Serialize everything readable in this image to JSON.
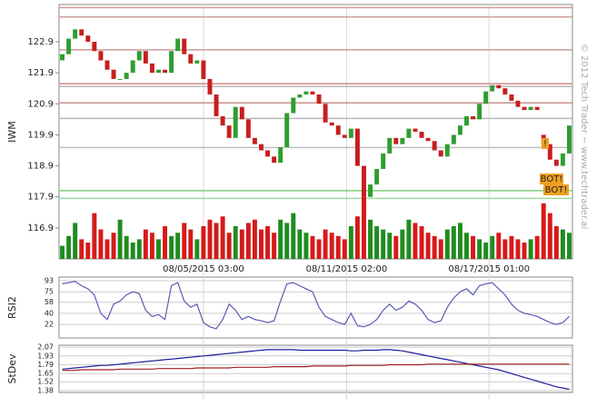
{
  "chart_data": [
    {
      "type": "candlestick",
      "ylabel": "IWM",
      "up_color": "#2e9e2e",
      "down_color": "#c81e1e",
      "xlim": [
        -0.5,
        79.5
      ],
      "xticks": [
        {
          "value": 22,
          "label": "08/05/2015 03:00"
        },
        {
          "value": 44.3,
          "label": "08/11/2015 02:00"
        },
        {
          "value": 66.5,
          "label": "08/17/2015 01:00"
        }
      ],
      "ylim": [
        115.9,
        124.1
      ],
      "yticks": [
        116.9,
        117.9,
        118.9,
        119.9,
        120.9,
        121.9,
        122.9
      ],
      "open": [
        122.3,
        122.5,
        123.0,
        123.3,
        123.1,
        122.9,
        122.6,
        122.3,
        122.0,
        121.7,
        121.7,
        121.9,
        122.3,
        122.6,
        122.2,
        121.9,
        122.0,
        121.9,
        122.6,
        123.0,
        122.5,
        122.2,
        122.3,
        121.7,
        121.2,
        120.5,
        120.2,
        119.8,
        120.8,
        120.4,
        119.8,
        119.6,
        119.4,
        119.2,
        119.0,
        119.5,
        120.6,
        121.1,
        121.2,
        121.3,
        121.2,
        120.9,
        120.3,
        120.2,
        119.9,
        119.8,
        120.1,
        118.9,
        117.9,
        118.3,
        118.8,
        119.3,
        119.8,
        119.6,
        119.8,
        120.1,
        120.0,
        119.8,
        119.7,
        119.4,
        119.2,
        119.6,
        119.9,
        120.2,
        120.5,
        120.4,
        120.9,
        121.3,
        121.5,
        121.4,
        121.2,
        121.0,
        120.8,
        120.7,
        120.8,
        119.9,
        119.6,
        119.1,
        118.9,
        119.3
      ],
      "close": [
        122.5,
        123.0,
        123.3,
        123.1,
        122.9,
        122.6,
        122.3,
        122.0,
        121.7,
        121.7,
        121.9,
        122.3,
        122.6,
        122.2,
        121.9,
        122.0,
        121.9,
        122.6,
        123.0,
        122.5,
        122.2,
        122.3,
        121.7,
        121.2,
        120.5,
        120.2,
        119.8,
        120.8,
        120.4,
        119.8,
        119.6,
        119.4,
        119.2,
        119.0,
        119.5,
        120.6,
        121.1,
        121.2,
        121.3,
        121.2,
        120.9,
        120.3,
        120.2,
        119.9,
        119.8,
        120.1,
        118.9,
        117.9,
        118.3,
        118.8,
        119.3,
        119.8,
        119.6,
        119.8,
        120.1,
        120.0,
        119.8,
        119.7,
        119.4,
        119.2,
        119.6,
        119.9,
        120.2,
        120.5,
        120.4,
        120.9,
        121.3,
        121.5,
        121.4,
        121.2,
        121.0,
        120.8,
        120.7,
        120.8,
        120.7,
        119.6,
        119.1,
        118.9,
        119.3,
        120.2
      ],
      "levels": [
        {
          "value": 124.0,
          "color": "#d09a9a"
        },
        {
          "value": 123.7,
          "color": "#d09a9a"
        },
        {
          "value": 122.64,
          "color": "#d09a9a"
        },
        {
          "value": 121.55,
          "color": "#d48a8a"
        },
        {
          "value": 121.46,
          "color": "#b8b8b8"
        },
        {
          "value": 120.93,
          "color": "#c89090"
        },
        {
          "value": 120.43,
          "color": "#b8b8b8"
        },
        {
          "value": 119.49,
          "color": "#c0c0c0"
        },
        {
          "value": 118.1,
          "color": "#7ccf7c"
        },
        {
          "value": 117.85,
          "color": "#9ed99e"
        }
      ],
      "annotations": [
        "!",
        "BOT!",
        "BOT!"
      ],
      "source": "© 2012 Tech Trader ~ www.techtrader.ai"
    },
    {
      "type": "bar",
      "up_color": "#1f8c1f",
      "down_color": "#d61a1a",
      "ylim": [
        0,
        100
      ],
      "values": [
        20,
        35,
        55,
        30,
        25,
        70,
        45,
        30,
        40,
        60,
        35,
        25,
        30,
        45,
        40,
        30,
        50,
        35,
        40,
        55,
        45,
        30,
        50,
        60,
        55,
        65,
        40,
        50,
        45,
        55,
        60,
        45,
        50,
        40,
        60,
        55,
        70,
        45,
        40,
        35,
        30,
        45,
        40,
        35,
        30,
        50,
        65,
        95,
        60,
        50,
        45,
        40,
        35,
        45,
        60,
        55,
        50,
        40,
        35,
        30,
        45,
        50,
        55,
        40,
        35,
        30,
        25,
        35,
        40,
        30,
        35,
        30,
        25,
        30,
        35,
        85,
        70,
        50,
        45,
        40
      ]
    },
    {
      "type": "line",
      "ylabel": "RSI2",
      "ylim": [
        0,
        99
      ],
      "yticks": [
        22,
        40,
        58,
        75,
        93
      ],
      "series": [
        {
          "color": "#5a5ab4",
          "values": [
            88,
            90,
            92,
            85,
            80,
            70,
            40,
            30,
            55,
            60,
            70,
            75,
            72,
            45,
            35,
            38,
            30,
            85,
            90,
            60,
            50,
            55,
            25,
            18,
            15,
            30,
            55,
            45,
            30,
            35,
            30,
            28,
            25,
            28,
            60,
            88,
            90,
            85,
            80,
            75,
            50,
            35,
            30,
            25,
            22,
            40,
            20,
            18,
            22,
            30,
            45,
            55,
            45,
            50,
            60,
            55,
            45,
            30,
            25,
            28,
            50,
            65,
            75,
            80,
            70,
            85,
            88,
            90,
            80,
            70,
            55,
            45,
            40,
            38,
            35,
            30,
            25,
            22,
            25,
            35
          ]
        }
      ]
    },
    {
      "type": "line",
      "ylabel": "StDev",
      "ylim": [
        1.35,
        2.1
      ],
      "yticks": [
        1.38,
        1.52,
        1.65,
        1.79,
        1.93,
        2.07
      ],
      "series": [
        {
          "color": "#1c1c9c",
          "values": [
            1.72,
            1.73,
            1.74,
            1.75,
            1.76,
            1.77,
            1.78,
            1.78,
            1.79,
            1.8,
            1.81,
            1.82,
            1.83,
            1.84,
            1.85,
            1.86,
            1.87,
            1.88,
            1.89,
            1.9,
            1.91,
            1.92,
            1.93,
            1.94,
            1.95,
            1.96,
            1.97,
            1.98,
            1.99,
            2.0,
            2.01,
            2.02,
            2.03,
            2.03,
            2.03,
            2.03,
            2.03,
            2.02,
            2.02,
            2.02,
            2.02,
            2.02,
            2.02,
            2.02,
            2.02,
            2.01,
            2.01,
            2.02,
            2.02,
            2.02,
            2.03,
            2.03,
            2.02,
            2.01,
            1.99,
            1.97,
            1.95,
            1.93,
            1.91,
            1.89,
            1.87,
            1.85,
            1.83,
            1.81,
            1.79,
            1.77,
            1.75,
            1.73,
            1.71,
            1.68,
            1.65,
            1.62,
            1.59,
            1.56,
            1.53,
            1.5,
            1.47,
            1.44,
            1.42,
            1.4
          ]
        },
        {
          "color": "#a02020",
          "values": [
            1.7,
            1.7,
            1.7,
            1.71,
            1.71,
            1.71,
            1.71,
            1.71,
            1.71,
            1.72,
            1.72,
            1.72,
            1.72,
            1.72,
            1.72,
            1.73,
            1.73,
            1.73,
            1.73,
            1.73,
            1.73,
            1.74,
            1.74,
            1.74,
            1.74,
            1.74,
            1.74,
            1.75,
            1.75,
            1.75,
            1.75,
            1.75,
            1.75,
            1.76,
            1.76,
            1.76,
            1.76,
            1.76,
            1.76,
            1.77,
            1.77,
            1.77,
            1.77,
            1.77,
            1.77,
            1.78,
            1.78,
            1.78,
            1.78,
            1.78,
            1.78,
            1.79,
            1.79,
            1.79,
            1.79,
            1.79,
            1.79,
            1.8,
            1.8,
            1.8,
            1.8,
            1.8,
            1.8,
            1.8,
            1.8,
            1.8,
            1.8,
            1.8,
            1.8,
            1.8,
            1.8,
            1.8,
            1.8,
            1.8,
            1.8,
            1.8,
            1.8,
            1.8,
            1.8,
            1.8
          ]
        }
      ]
    }
  ]
}
